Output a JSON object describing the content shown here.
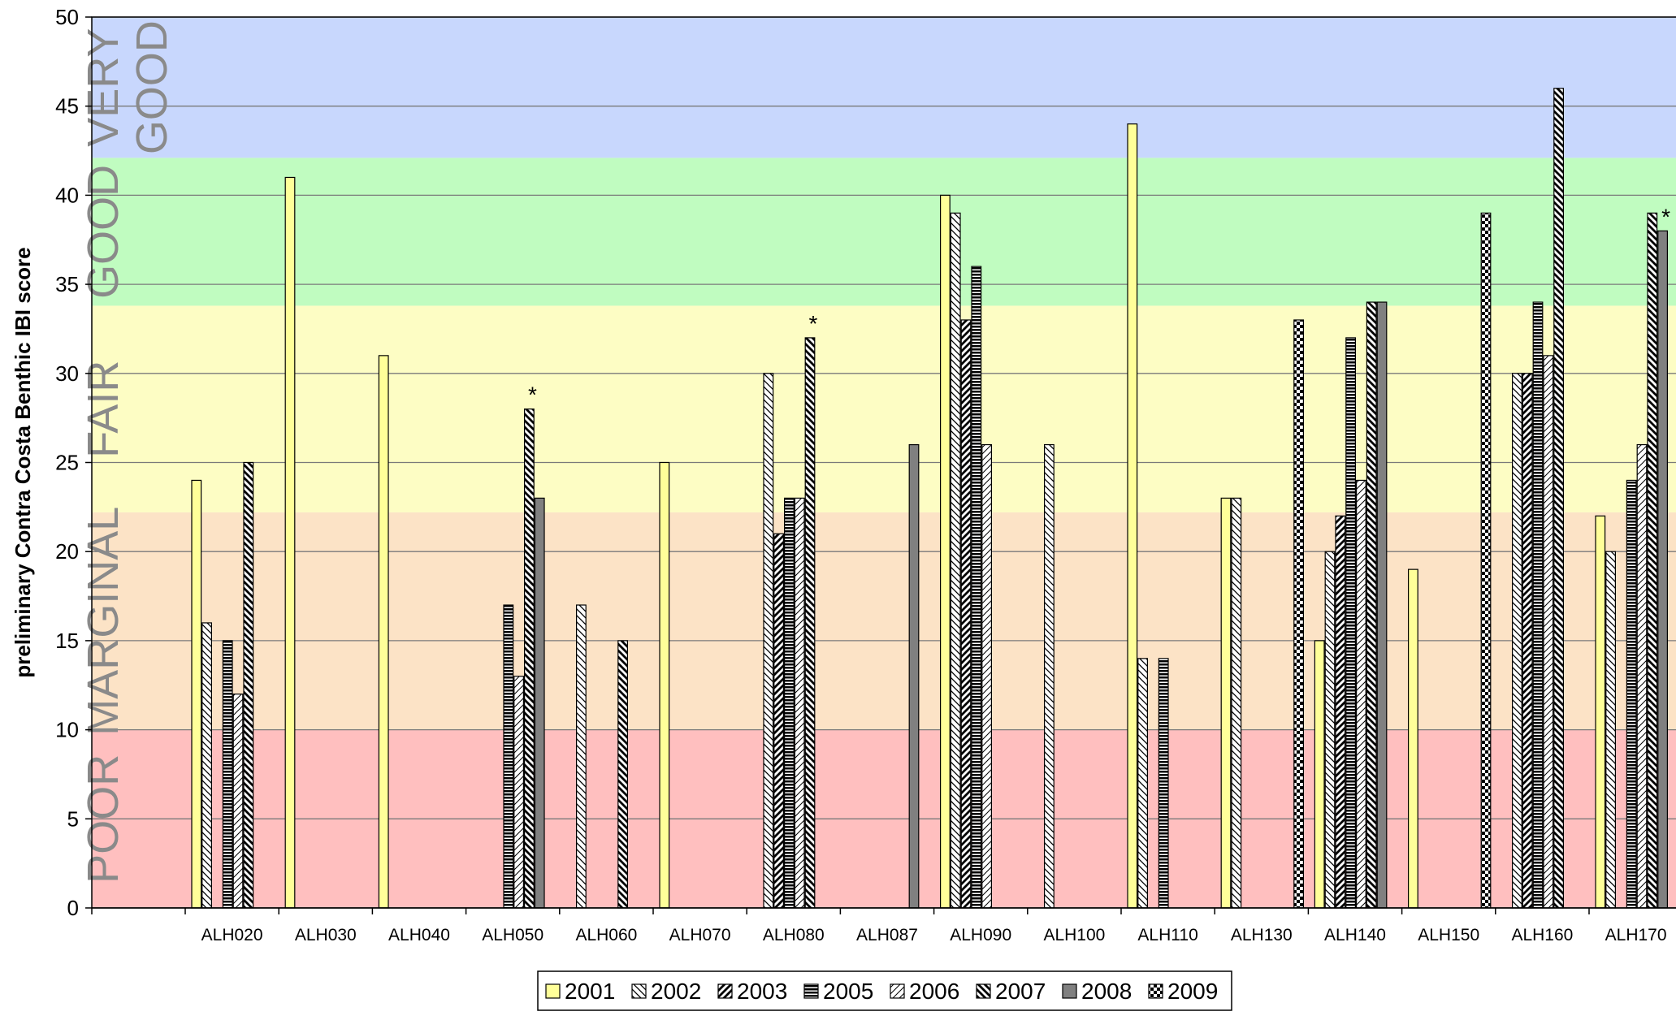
{
  "chart_data": {
    "type": "bar",
    "title": "",
    "xlabel": "",
    "ylabel": "preliminary Contra Costa Benthic IBI score",
    "ylim": [
      0,
      50
    ],
    "y_ticks": [
      0,
      5,
      10,
      15,
      20,
      25,
      30,
      35,
      40,
      45,
      50
    ],
    "grid": true,
    "legend_position": "bottom",
    "categories": [
      "ALH020",
      "ALH030",
      "ALH040",
      "ALH050",
      "ALH060",
      "ALH070",
      "ALH080",
      "ALH087",
      "ALH090",
      "ALH100",
      "ALH110",
      "ALH130",
      "ALH140",
      "ALH150",
      "ALH160",
      "ALH170"
    ],
    "bands": [
      {
        "label": "POOR",
        "from": 0,
        "to": 10,
        "color": "#ffbfbf"
      },
      {
        "label": "MARGINAL",
        "from": 10,
        "to": 22.2,
        "color": "#fce3c6"
      },
      {
        "label": "FAIR",
        "from": 22.2,
        "to": 33.8,
        "color": "#fdfdc4"
      },
      {
        "label": "GOOD",
        "from": 33.8,
        "to": 42.1,
        "color": "#c0fcc0"
      },
      {
        "label": "VERY GOOD",
        "from": 42.1,
        "to": 50,
        "color": "#c8d7fd"
      }
    ],
    "series": [
      {
        "name": "2001",
        "pattern": "solid-yellow",
        "values": [
          24,
          41,
          31,
          null,
          null,
          25,
          null,
          null,
          40,
          null,
          44,
          23,
          15,
          19,
          null,
          22
        ]
      },
      {
        "name": "2002",
        "pattern": "back-diagonal",
        "values": [
          16,
          null,
          null,
          null,
          17,
          null,
          30,
          null,
          39,
          26,
          14,
          23,
          20,
          null,
          30,
          20
        ]
      },
      {
        "name": "2003",
        "pattern": "thick-diagonal",
        "values": [
          null,
          null,
          null,
          null,
          null,
          null,
          21,
          null,
          33,
          null,
          null,
          null,
          22,
          null,
          30,
          null
        ]
      },
      {
        "name": "2005",
        "pattern": "horizontal-stripes",
        "values": [
          15,
          null,
          null,
          17,
          null,
          null,
          23,
          null,
          36,
          null,
          14,
          null,
          32,
          null,
          34,
          24
        ]
      },
      {
        "name": "2006",
        "pattern": "light-diagonal",
        "values": [
          12,
          null,
          null,
          13,
          null,
          null,
          23,
          null,
          26,
          null,
          null,
          null,
          24,
          null,
          31,
          26
        ]
      },
      {
        "name": "2007",
        "pattern": "thick-back-diagonal",
        "values": [
          25,
          null,
          null,
          28,
          15,
          null,
          32,
          null,
          null,
          null,
          null,
          null,
          34,
          null,
          46,
          39
        ]
      },
      {
        "name": "2008",
        "pattern": "solid-gray",
        "values": [
          null,
          null,
          null,
          23,
          null,
          null,
          null,
          26,
          null,
          null,
          null,
          null,
          34,
          null,
          null,
          38
        ]
      },
      {
        "name": "2009",
        "pattern": "checkerboard",
        "values": [
          null,
          null,
          null,
          null,
          null,
          null,
          null,
          null,
          null,
          null,
          null,
          33,
          null,
          39,
          null,
          null
        ]
      }
    ],
    "annotations": [
      {
        "text": "*",
        "category": "ALH050",
        "series": "2007"
      },
      {
        "text": "*",
        "category": "ALH080",
        "series": "2007"
      },
      {
        "text": "*",
        "category": "ALH170",
        "series": "2008"
      }
    ]
  }
}
